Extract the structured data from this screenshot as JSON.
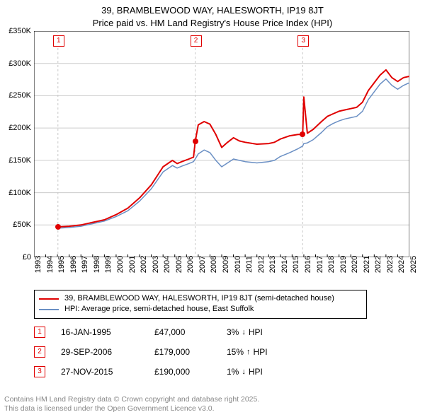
{
  "chart": {
    "type": "line",
    "title_line1": "39, BRAMBLEWOOD WAY, HALESWORTH, IP19 8JT",
    "title_line2": "Price paid vs. HM Land Registry's House Price Index (HPI)",
    "title_fontsize": 13,
    "background_color": "#ffffff",
    "grid_color": "#cccccc",
    "axis_color": "#000000",
    "ylim": [
      0,
      350
    ],
    "y_ticks": [
      0,
      50,
      100,
      150,
      200,
      250,
      300,
      350
    ],
    "y_tick_labels": [
      "£0",
      "£50K",
      "£100K",
      "£150K",
      "£200K",
      "£250K",
      "£300K",
      "£350K"
    ],
    "xlim": [
      1993,
      2025
    ],
    "x_ticks": [
      1993,
      1994,
      1995,
      1996,
      1997,
      1998,
      1999,
      2000,
      2001,
      2002,
      2003,
      2004,
      2005,
      2006,
      2007,
      2008,
      2009,
      2010,
      2011,
      2012,
      2013,
      2014,
      2015,
      2016,
      2017,
      2018,
      2019,
      2020,
      2021,
      2022,
      2023,
      2024,
      2025
    ],
    "tick_fontsize": 11,
    "series": {
      "property": {
        "label": "39, BRAMBLEWOOD WAY, HALESWORTH, IP19 8JT (semi-detached house)",
        "color": "#e00000",
        "width": 2,
        "points": [
          [
            1995.04,
            47
          ],
          [
            1996,
            48
          ],
          [
            1997,
            50
          ],
          [
            1998,
            54
          ],
          [
            1999,
            58
          ],
          [
            2000,
            66
          ],
          [
            2001,
            76
          ],
          [
            2002,
            92
          ],
          [
            2003,
            112
          ],
          [
            2004,
            140
          ],
          [
            2004.8,
            150
          ],
          [
            2005.2,
            145
          ],
          [
            2005.6,
            148
          ],
          [
            2006.2,
            152
          ],
          [
            2006.6,
            155
          ],
          [
            2006.74,
            179
          ],
          [
            2007,
            205
          ],
          [
            2007.5,
            210
          ],
          [
            2008,
            206
          ],
          [
            2008.5,
            190
          ],
          [
            2009,
            170
          ],
          [
            2009.5,
            178
          ],
          [
            2010,
            185
          ],
          [
            2010.5,
            180
          ],
          [
            2011,
            178
          ],
          [
            2012,
            175
          ],
          [
            2013,
            176
          ],
          [
            2013.5,
            178
          ],
          [
            2014,
            183
          ],
          [
            2014.8,
            188
          ],
          [
            2015.5,
            190
          ],
          [
            2015.9,
            190
          ],
          [
            2016,
            248
          ],
          [
            2016.3,
            192
          ],
          [
            2016.8,
            198
          ],
          [
            2017.5,
            210
          ],
          [
            2018,
            218
          ],
          [
            2018.5,
            222
          ],
          [
            2019,
            226
          ],
          [
            2019.5,
            228
          ],
          [
            2020,
            230
          ],
          [
            2020.5,
            232
          ],
          [
            2021,
            240
          ],
          [
            2021.5,
            258
          ],
          [
            2022,
            270
          ],
          [
            2022.5,
            282
          ],
          [
            2023,
            290
          ],
          [
            2023.5,
            278
          ],
          [
            2024,
            272
          ],
          [
            2024.5,
            278
          ],
          [
            2025,
            280
          ]
        ]
      },
      "hpi": {
        "label": "HPI: Average price, semi-detached house, East Suffolk",
        "color": "#6a8fc4",
        "width": 1.5,
        "points": [
          [
            1995.04,
            45
          ],
          [
            1996,
            46
          ],
          [
            1997,
            48
          ],
          [
            1998,
            52
          ],
          [
            1999,
            56
          ],
          [
            2000,
            63
          ],
          [
            2001,
            72
          ],
          [
            2002,
            87
          ],
          [
            2003,
            106
          ],
          [
            2004,
            132
          ],
          [
            2004.8,
            142
          ],
          [
            2005.2,
            138
          ],
          [
            2005.6,
            141
          ],
          [
            2006.2,
            145
          ],
          [
            2006.6,
            148
          ],
          [
            2006.74,
            152
          ],
          [
            2007,
            160
          ],
          [
            2007.5,
            166
          ],
          [
            2008,
            162
          ],
          [
            2008.5,
            150
          ],
          [
            2009,
            140
          ],
          [
            2009.5,
            146
          ],
          [
            2010,
            152
          ],
          [
            2010.5,
            150
          ],
          [
            2011,
            148
          ],
          [
            2012,
            146
          ],
          [
            2013,
            148
          ],
          [
            2013.5,
            150
          ],
          [
            2014,
            156
          ],
          [
            2014.8,
            162
          ],
          [
            2015.5,
            168
          ],
          [
            2015.9,
            172
          ],
          [
            2016,
            176
          ],
          [
            2016.3,
            177
          ],
          [
            2016.8,
            182
          ],
          [
            2017.5,
            193
          ],
          [
            2018,
            202
          ],
          [
            2018.5,
            207
          ],
          [
            2019,
            211
          ],
          [
            2019.5,
            214
          ],
          [
            2020,
            216
          ],
          [
            2020.5,
            218
          ],
          [
            2021,
            226
          ],
          [
            2021.5,
            244
          ],
          [
            2022,
            256
          ],
          [
            2022.5,
            268
          ],
          [
            2023,
            276
          ],
          [
            2023.5,
            266
          ],
          [
            2024,
            260
          ],
          [
            2024.5,
            266
          ],
          [
            2025,
            270
          ]
        ]
      }
    },
    "sale_markers": [
      {
        "n": "1",
        "year": 1995.04,
        "marker_color": "#e00000"
      },
      {
        "n": "2",
        "year": 2006.74,
        "marker_color": "#e00000"
      },
      {
        "n": "3",
        "year": 2015.9,
        "marker_color": "#e00000"
      }
    ],
    "sale_dot_color": "#e00000"
  },
  "legend": {
    "border_color": "#000000",
    "fontsize": 11,
    "rows": [
      {
        "color": "#e00000",
        "label": "39, BRAMBLEWOOD WAY, HALESWORTH, IP19 8JT (semi-detached house)"
      },
      {
        "color": "#6a8fc4",
        "label": "HPI: Average price, semi-detached house, East Suffolk"
      }
    ]
  },
  "sales_table": {
    "fontsize": 12,
    "rows": [
      {
        "n": "1",
        "marker_color": "#e00000",
        "date": "16-JAN-1995",
        "price": "£47,000",
        "hpi_pct": "3%",
        "arrow": "↓",
        "hpi_label": "HPI"
      },
      {
        "n": "2",
        "marker_color": "#e00000",
        "date": "29-SEP-2006",
        "price": "£179,000",
        "hpi_pct": "15%",
        "arrow": "↑",
        "hpi_label": "HPI"
      },
      {
        "n": "3",
        "marker_color": "#e00000",
        "date": "27-NOV-2015",
        "price": "£190,000",
        "hpi_pct": "1%",
        "arrow": "↓",
        "hpi_label": "HPI"
      }
    ]
  },
  "attribution": {
    "line1": "Contains HM Land Registry data © Crown copyright and database right 2025.",
    "line2": "This data is licensed under the Open Government Licence v3.0.",
    "color": "#888888",
    "fontsize": 10.5
  }
}
